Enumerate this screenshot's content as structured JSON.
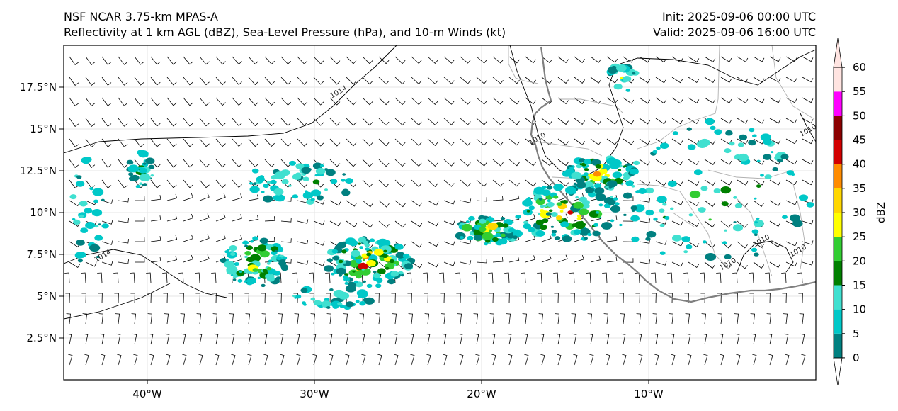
{
  "header": {
    "title_line1": "NSF NCAR 3.75-km MPAS-A",
    "title_line2": "Reflectivity at 1 km AGL (dBZ), Sea-Level Pressure (hPa), and 10-m Winds (kt)",
    "init_label": "Init: 2025-09-06 00:00 UTC",
    "valid_label": "Valid: 2025-09-06 16:00 UTC"
  },
  "map": {
    "lon_range": [
      -45,
      0
    ],
    "lat_range": [
      0,
      20
    ],
    "lon_ticks": [
      {
        "value": -40,
        "label": "40°W"
      },
      {
        "value": -30,
        "label": "30°W"
      },
      {
        "value": -20,
        "label": "20°W"
      },
      {
        "value": -10,
        "label": "10°W"
      }
    ],
    "lat_ticks": [
      {
        "value": 2.5,
        "label": "2.5°N"
      },
      {
        "value": 5,
        "label": "5°N"
      },
      {
        "value": 7.5,
        "label": "7.5°N"
      },
      {
        "value": 10,
        "label": "10°N"
      },
      {
        "value": 12.5,
        "label": "12.5°N"
      },
      {
        "value": 15,
        "label": "15°N"
      },
      {
        "value": 17.5,
        "label": "17.5°N"
      }
    ],
    "gridlines": true,
    "pressure_contour_labels": [
      {
        "text": "1014",
        "lon": -28.5,
        "lat": 17.1
      },
      {
        "text": "1014",
        "lon": -42.6,
        "lat": 7.3
      },
      {
        "text": "1010",
        "lon": -16.6,
        "lat": 14.3
      },
      {
        "text": "1010",
        "lon": -5.2,
        "lat": 6.8
      },
      {
        "text": "1010",
        "lon": -3.2,
        "lat": 8.2
      },
      {
        "text": "1010",
        "lon": -1.0,
        "lat": 7.6
      },
      {
        "text": "1010",
        "lon": -0.4,
        "lat": 14.8
      }
    ]
  },
  "colorbar": {
    "label": "dBZ",
    "levels": [
      "0",
      "5",
      "10",
      "15",
      "20",
      "25",
      "30",
      "35",
      "40",
      "45",
      "50",
      "55",
      "60"
    ],
    "colors": [
      "#008080",
      "#00c8c8",
      "#40e0d0",
      "#008000",
      "#32cd32",
      "#ffff00",
      "#ffd700",
      "#ff8c00",
      "#d20000",
      "#8b0000",
      "#ff00ff",
      "#ffe4e1"
    ]
  }
}
